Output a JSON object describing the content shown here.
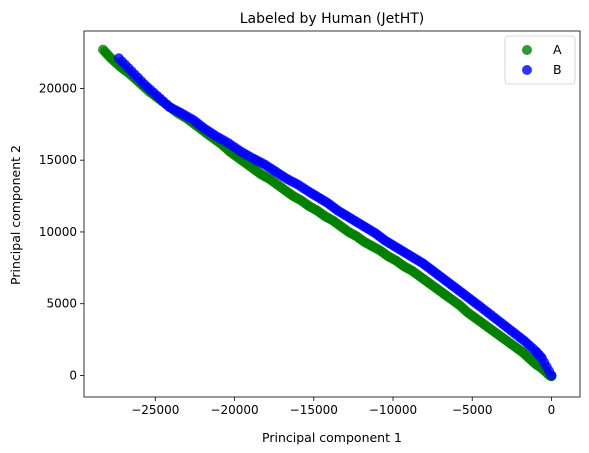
{
  "chart_data": {
    "type": "scatter",
    "title": "Labeled by Human (JetHT)",
    "xlabel": "Principal component 1",
    "ylabel": "Principal component 2",
    "xlim": [
      -29500,
      1800
    ],
    "ylim": [
      -1500,
      24000
    ],
    "xticks": [
      -25000,
      -20000,
      -15000,
      -10000,
      -5000,
      0
    ],
    "yticks": [
      0,
      5000,
      10000,
      15000,
      20000
    ],
    "xtick_labels": [
      "−25000",
      "−20000",
      "−15000",
      "−10000",
      "−5000",
      "0"
    ],
    "ytick_labels": [
      "0",
      "5000",
      "10000",
      "15000",
      "20000"
    ],
    "legend_position": "top-right",
    "marker_opacity": 0.8,
    "series": [
      {
        "name": "A",
        "color": "#008000",
        "x": [
          -28300,
          -27800,
          -27200,
          -26600,
          -26000,
          -25400,
          -24800,
          -24200,
          -23600,
          -23000,
          -22400,
          -21800,
          -21300,
          -20800,
          -20300,
          -19800,
          -19300,
          -18800,
          -18300,
          -17800,
          -17300,
          -16800,
          -16300,
          -15800,
          -15300,
          -14800,
          -14300,
          -13800,
          -13300,
          -12800,
          -12300,
          -11800,
          -11300,
          -10800,
          -10300,
          -9800,
          -9300,
          -8800,
          -8300,
          -7800,
          -7300,
          -6800,
          -6300,
          -5800,
          -5300,
          -4800,
          -4300,
          -3800,
          -3300,
          -2800,
          -2300,
          -1800,
          -1400,
          -1000,
          -600,
          -300,
          -100,
          0
        ],
        "y": [
          22700,
          22100,
          21500,
          21000,
          20400,
          19800,
          19300,
          18800,
          18300,
          17900,
          17400,
          16900,
          16500,
          16100,
          15600,
          15200,
          14800,
          14400,
          14000,
          13700,
          13300,
          12900,
          12500,
          12200,
          11800,
          11500,
          11100,
          10800,
          10400,
          10000,
          9700,
          9300,
          9000,
          8700,
          8300,
          8000,
          7600,
          7300,
          6900,
          6500,
          6100,
          5700,
          5300,
          4900,
          4400,
          4000,
          3600,
          3200,
          2800,
          2400,
          2000,
          1600,
          1200,
          800,
          500,
          200,
          0,
          -50
        ]
      },
      {
        "name": "B",
        "color": "#0000ff",
        "x": [
          -27300,
          -26500,
          -25700,
          -24900,
          -24100,
          -23400,
          -22600,
          -21900,
          -21200,
          -20400,
          -19600,
          -18800,
          -18100,
          -17400,
          -16700,
          -16000,
          -15300,
          -14700,
          -14100,
          -13500,
          -12900,
          -12300,
          -11700,
          -11100,
          -10500,
          -9900,
          -9300,
          -8700,
          -8100,
          -7500,
          -6900,
          -6300,
          -5700,
          -5100,
          -4500,
          -3800,
          -3100,
          -2400,
          -1700,
          -1000,
          -600,
          0
        ],
        "y": [
          22100,
          21200,
          20300,
          19500,
          18700,
          18300,
          17800,
          17200,
          16700,
          16200,
          15600,
          15100,
          14700,
          14200,
          13700,
          13300,
          12800,
          12400,
          12000,
          11500,
          11100,
          10700,
          10300,
          9900,
          9400,
          9000,
          8600,
          8200,
          7800,
          7300,
          6800,
          6300,
          5800,
          5300,
          4800,
          4200,
          3600,
          3000,
          2400,
          1700,
          1200,
          0
        ]
      }
    ]
  }
}
